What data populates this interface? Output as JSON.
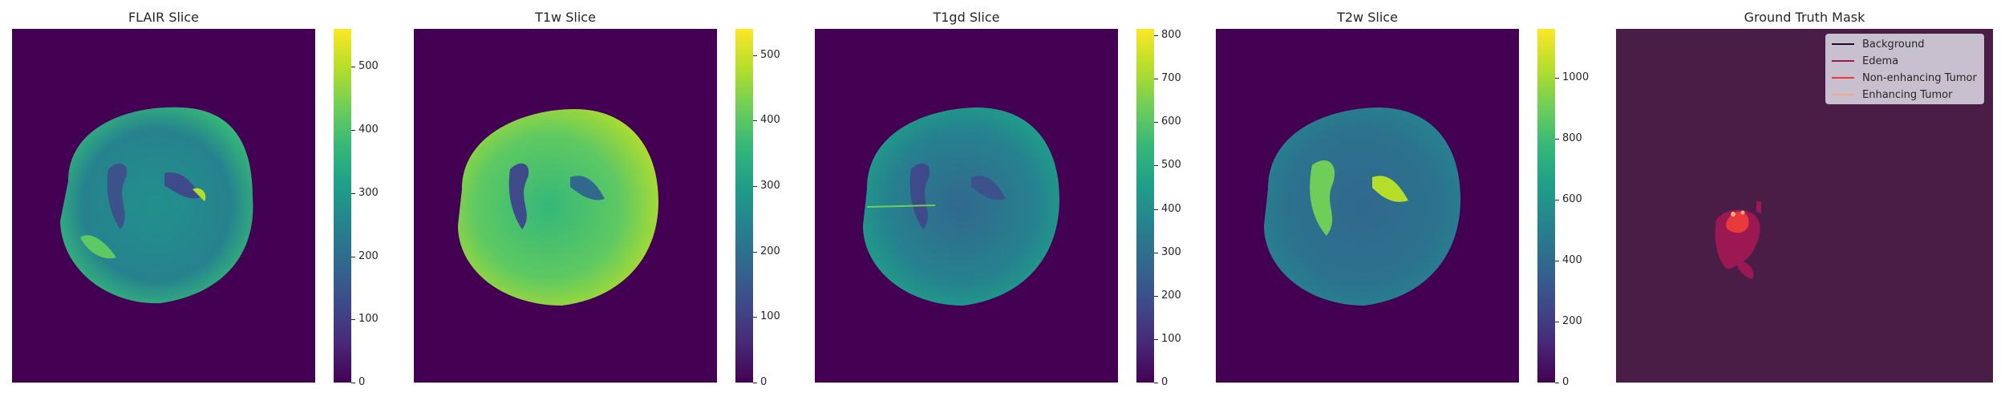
{
  "panels": [
    {
      "title": "FLAIR Slice",
      "colorbar_ticks": [
        "0",
        "100",
        "200",
        "300",
        "400",
        "500"
      ],
      "colorbar_max": 560
    },
    {
      "title": "T1w Slice",
      "colorbar_ticks": [
        "0",
        "100",
        "200",
        "300",
        "400",
        "500"
      ],
      "colorbar_max": 540
    },
    {
      "title": "T1gd Slice",
      "colorbar_ticks": [
        "0",
        "100",
        "200",
        "300",
        "400",
        "500",
        "600",
        "700",
        "800"
      ],
      "colorbar_max": 815
    },
    {
      "title": "T2w Slice",
      "colorbar_ticks": [
        "0",
        "200",
        "400",
        "600",
        "800",
        "1000"
      ],
      "colorbar_max": 1160
    }
  ],
  "mask": {
    "title": "Ground Truth Mask",
    "background_color": "#4a1d47",
    "legend": [
      {
        "label": "Background",
        "color": "#1b0c29"
      },
      {
        "label": "Edema",
        "color": "#9b1852"
      },
      {
        "label": "Non-enhancing Tumor",
        "color": "#e8393b"
      },
      {
        "label": "Enhancing Tumor",
        "color": "#f7a582"
      }
    ]
  },
  "colormap": "viridis"
}
